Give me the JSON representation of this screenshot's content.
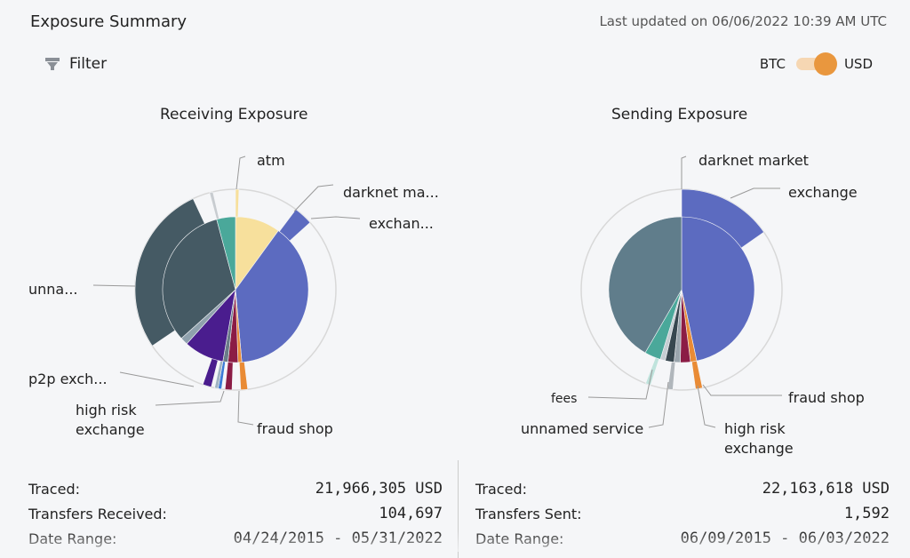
{
  "header": {
    "title": "Exposure Summary",
    "last_updated": "Last updated on 06/06/2022 10:39 AM UTC"
  },
  "filter": {
    "label": "Filter",
    "icon": "filter-icon"
  },
  "currency_toggle": {
    "left_label": "BTC",
    "right_label": "USD",
    "selected": "USD"
  },
  "colors": {
    "exchange": "#5c6bc0",
    "atm": "#f7e09c",
    "unnamed": "#455a64",
    "fraud_shop": "#e98b35",
    "teal": "#4aa89a",
    "purple": "#4a1d8e",
    "maroon": "#8b1c45"
  },
  "receiving": {
    "title": "Receiving Exposure",
    "labels": {
      "atm": "atm",
      "darknet": "darknet ma...",
      "exchange": "exchan...",
      "unnamed": "unna...",
      "p2p": "p2p exch...",
      "high_risk_1": "high risk",
      "high_risk_2": "exchange",
      "fraud_shop": "fraud shop"
    },
    "stats": [
      {
        "label": "Traced:",
        "value": "21,966,305 USD"
      },
      {
        "label": "Transfers Received:",
        "value": "104,697"
      },
      {
        "label": "Date Range:",
        "value": "04/24/2015 - 05/31/2022"
      }
    ]
  },
  "sending": {
    "title": "Sending Exposure",
    "labels": {
      "darknet": "darknet market",
      "exchange": "exchange",
      "fees": "fees",
      "unnamed_service": "unnamed service",
      "fraud_shop": "fraud shop",
      "high_risk_1": "high risk",
      "high_risk_2": "exchange"
    },
    "stats": [
      {
        "label": "Traced:",
        "value": "22,163,618 USD"
      },
      {
        "label": "Transfers Sent:",
        "value": "1,592"
      },
      {
        "label": "Date Range:",
        "value": "06/09/2015 - 06/03/2022"
      }
    ]
  }
}
